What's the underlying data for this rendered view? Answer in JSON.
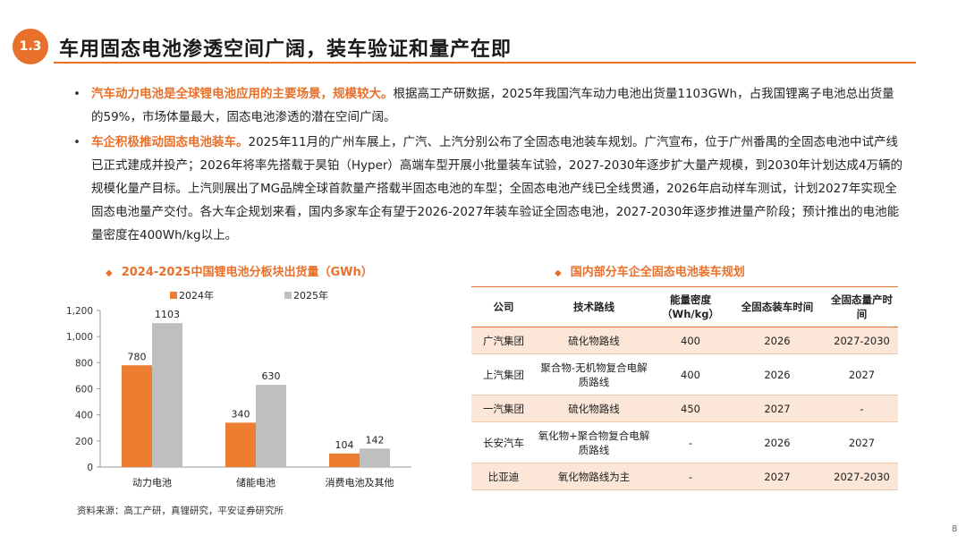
{
  "header": {
    "badge": "1.3",
    "title": "车用固态电池渗透空间广阔，装车验证和量产在即"
  },
  "bullets": [
    {
      "highlight": "汽车动力电池是全球锂电池应用的主要场景，规模较大。",
      "text": "根据高工产研数据，2025年我国汽车动力电池出货量1103GWh，占我国锂离子电池总出货量的59%，市场体量最大，固态电池渗透的潜在空间广阔。"
    },
    {
      "highlight": "车企积极推动固态电池装车。",
      "text": "2025年11月的广州车展上，广汽、上汽分别公布了全固态电池装车规划。广汽宣布，位于广州番禺的全固态电池中试产线已正式建成并投产；2026年将率先搭载于昊铂（Hyper）高端车型开展小批量装车试验，2027-2030年逐步扩大量产规模，到2030年计划达成4万辆的规模化量产目标。上汽则展出了MG品牌全球首款量产搭载半固态电池的车型；全固态电池产线已全线贯通，2026年启动样车测试，计划2027年实现全固态电池量产交付。各大车企规划来看，国内多家车企有望于2026-2027年装车验证全固态电池，2027-2030年逐步推进量产阶段；预计推出的电池能量密度在400Wh/kg以上。"
    }
  ],
  "chart_section": {
    "title": "2024-2025中国锂电池分板块出货量（GWh）",
    "source": "资料来源：高工产研，真锂研究，平安证券研究所"
  },
  "chart_data": {
    "type": "bar",
    "title": "2024-2025中国锂电池分板块出货量（GWh）",
    "categories": [
      "动力电池",
      "储能电池",
      "消费电池及其他"
    ],
    "series": [
      {
        "name": "2024年",
        "values": [
          780,
          340,
          104
        ],
        "color": "#ed7d31"
      },
      {
        "name": "2025年",
        "values": [
          1103,
          630,
          142
        ],
        "color": "#bfbfbf"
      }
    ],
    "ylim": [
      0,
      1200
    ],
    "yticks": [
      "0",
      "200",
      "400",
      "600",
      "800",
      "1,000",
      "1,200"
    ],
    "legend": "top",
    "grid": false
  },
  "table_section": {
    "title": "国内部分车企全固态电池装车规划",
    "headers": [
      "公司",
      "技术路线",
      "能量密度（Wh/kg）",
      "全固态装车时间",
      "全固态量产时间"
    ],
    "rows": [
      [
        "广汽集团",
        "硫化物路线",
        "400",
        "2026",
        "2027-2030"
      ],
      [
        "上汽集团",
        "聚合物-无机物复合电解质路线",
        "400",
        "2026",
        "2027"
      ],
      [
        "一汽集团",
        "硫化物路线",
        "450",
        "2027",
        "-"
      ],
      [
        "长安汽车",
        "氧化物+聚合物复合电解质路线",
        "-",
        "2026",
        "2027"
      ],
      [
        "比亚迪",
        "氧化物路线为主",
        "-",
        "2027",
        "2027-2030"
      ]
    ]
  },
  "page_number": "8",
  "colors": {
    "accent": "#e8702a",
    "bar2024": "#ed7d31",
    "bar2025": "#bfbfbf",
    "row_alt": "#fbe6d7"
  }
}
